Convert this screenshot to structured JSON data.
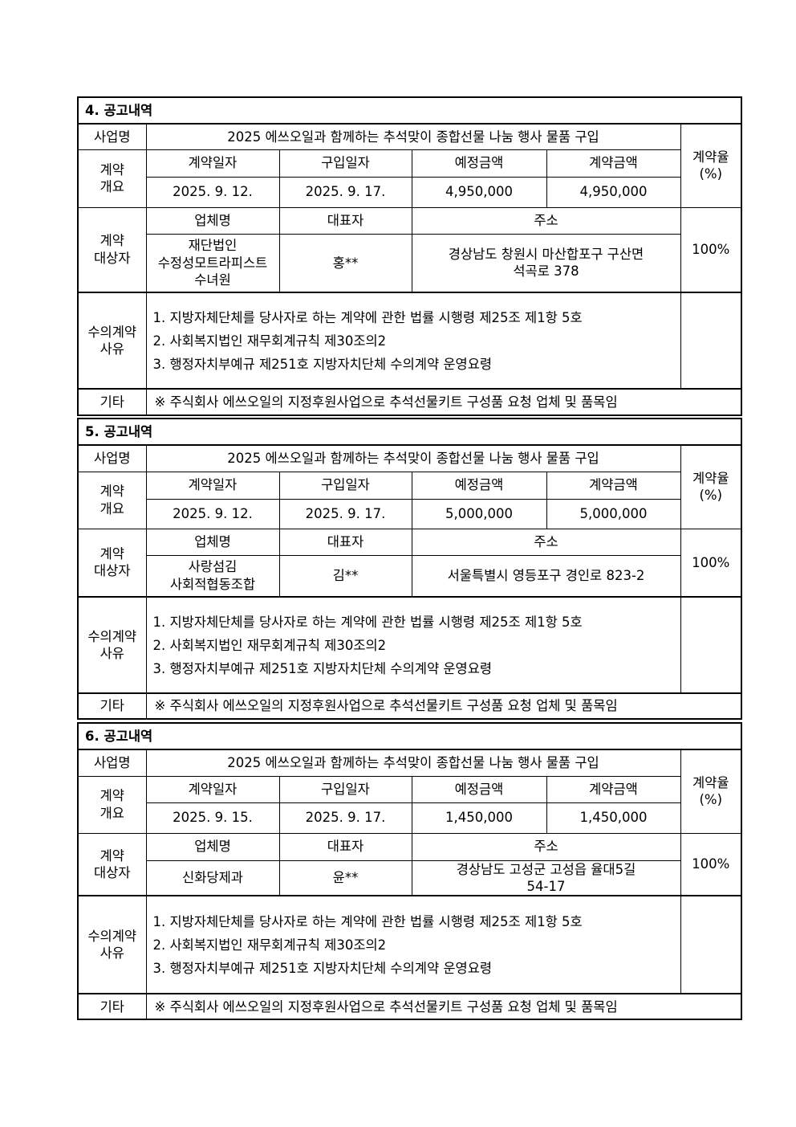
{
  "labels": {
    "project": "사업명",
    "overview": "계약\n개요",
    "contract_date": "계약일자",
    "purchase_date": "구입일자",
    "estimated_amount": "예정금액",
    "contract_amount": "계약금액",
    "rate": "계약율\n(%)",
    "counterparty": "계약\n대상자",
    "company": "업체명",
    "representative": "대표자",
    "address": "주소",
    "reason": "수의계약\n사유",
    "etc": "기타"
  },
  "notices": [
    {
      "title": "4. 공고내역",
      "project": "2025 에쓰오일과 함께하는 추석맞이 종합선물 나눔 행사 물품 구입",
      "contract_date": "2025. 9. 12.",
      "purchase_date": "2025. 9. 17.",
      "estimated_amount": "4,950,000",
      "contract_amount": "4,950,000",
      "rate": "100%",
      "company": "재단법인\n수정성모트라피스트\n수녀원",
      "representative": "홍**",
      "address": "경상남도 창원시 마산합포구 구산면\n석곡로 378",
      "reasons": [
        "1. 지방자체단체를 당사자로 하는 계약에 관한 법률 시행령 제25조 제1항 5호",
        "2. 사회복지법인 재무회계규칙 제30조의2",
        "3. 행정자치부예규 제251호 지방자치단체 수의계약 운영요령"
      ],
      "etc": "※ 주식회사 에쓰오일의 지정후원사업으로 추석선물키트 구성품 요청 업체 및 품목임"
    },
    {
      "title": "5. 공고내역",
      "project": "2025 에쓰오일과 함께하는 추석맞이 종합선물 나눔 행사 물품 구입",
      "contract_date": "2025. 9. 12.",
      "purchase_date": "2025. 9. 17.",
      "estimated_amount": "5,000,000",
      "contract_amount": "5,000,000",
      "rate": "100%",
      "company": "사랑섬김\n사회적협동조합",
      "representative": "김**",
      "address": "서울특별시 영등포구 경인로 823-2",
      "reasons": [
        "1. 지방자체단체를 당사자로 하는 계약에 관한 법률 시행령 제25조 제1항 5호",
        "2. 사회복지법인 재무회계규칙 제30조의2",
        "3. 행정자치부예규 제251호 지방자치단체 수의계약 운영요령"
      ],
      "etc": "※ 주식회사 에쓰오일의 지정후원사업으로 추석선물키트 구성품 요청 업체 및 품목임"
    },
    {
      "title": "6. 공고내역",
      "project": "2025 에쓰오일과 함께하는 추석맞이 종합선물 나눔 행사 물품 구입",
      "contract_date": "2025. 9. 15.",
      "purchase_date": "2025. 9. 17.",
      "estimated_amount": "1,450,000",
      "contract_amount": "1,450,000",
      "rate": "100%",
      "company": "신화당제과",
      "representative": "윤**",
      "address": "경상남도 고성군 고성읍 율대5길\n54-17",
      "reasons": [
        "1. 지방자체단체를 당사자로 하는 계약에 관한 법률 시행령 제25조 제1항 5호",
        "2. 사회복지법인 재무회계규칙 제30조의2",
        "3. 행정자치부예규 제251호 지방자치단체 수의계약 운영요령"
      ],
      "etc": "※ 주식회사 에쓰오일의 지정후원사업으로 추석선물키트 구성품 요청 업체 및 품목임"
    }
  ]
}
